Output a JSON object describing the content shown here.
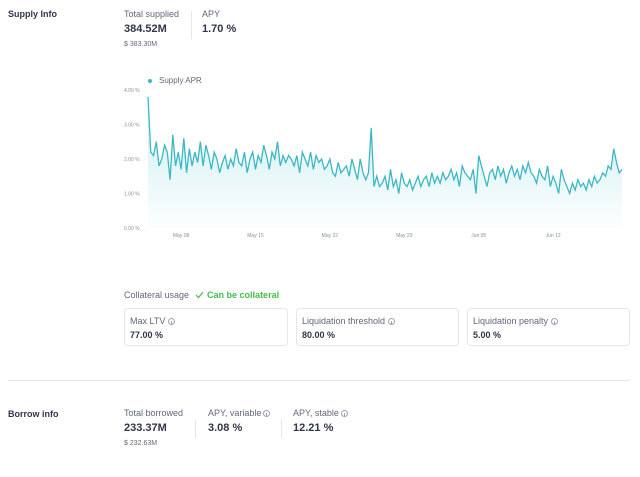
{
  "supply_info": {
    "title": "Supply Info",
    "total_supplied_label": "Total supplied",
    "total_supplied_value": "384.52M",
    "total_supplied_usd": "$ 383.30M",
    "apy_label": "APY",
    "apy_value": "1.70 %"
  },
  "chart_data": {
    "type": "line",
    "legend": "Supply APR",
    "y_ticks": [
      "4.00 %",
      "3.00 %",
      "2.00 %",
      "1.00 %",
      "0.00 %"
    ],
    "ylim": [
      0,
      4
    ],
    "x_ticks": [
      "May 08",
      "May 15",
      "May 22",
      "May 29",
      "Jun 05",
      "Jun 12"
    ],
    "x_tick_index": [
      12,
      39,
      66,
      93,
      120,
      147
    ],
    "values": [
      3.8,
      2.2,
      2.1,
      2.5,
      1.8,
      2.0,
      2.4,
      2.2,
      1.4,
      2.7,
      1.8,
      2.2,
      1.7,
      2.6,
      1.6,
      2.3,
      1.8,
      2.2,
      1.9,
      2.5,
      1.8,
      2.4,
      2.1,
      1.7,
      2.2,
      2.0,
      1.6,
      1.9,
      2.1,
      1.7,
      2.0,
      1.8,
      2.3,
      1.9,
      1.8,
      2.2,
      1.6,
      2.0,
      2.2,
      1.7,
      2.1,
      1.9,
      2.4,
      2.1,
      1.7,
      2.2,
      2.0,
      2.5,
      1.8,
      2.1,
      1.9,
      2.1,
      2.0,
      1.8,
      2.1,
      1.6,
      2.2,
      2.0,
      1.8,
      2.2,
      1.7,
      2.1,
      1.9,
      2.0,
      1.7,
      1.8,
      2.0,
      1.6,
      1.5,
      1.9,
      1.6,
      1.7,
      1.8,
      1.5,
      2.0,
      1.7,
      1.4,
      2.0,
      1.6,
      1.4,
      1.6,
      2.9,
      1.2,
      1.5,
      1.2,
      1.3,
      1.5,
      1.1,
      1.7,
      1.2,
      1.4,
      1.0,
      1.6,
      1.3,
      1.2,
      1.4,
      1.1,
      1.3,
      1.5,
      1.2,
      1.4,
      1.5,
      1.2,
      1.6,
      1.3,
      1.5,
      1.3,
      1.6,
      1.4,
      1.5,
      1.7,
      1.4,
      1.6,
      1.2,
      1.8,
      1.6,
      1.5,
      1.4,
      1.7,
      1.0,
      2.1,
      1.8,
      1.5,
      1.2,
      1.6,
      1.7,
      1.4,
      1.8,
      1.5,
      1.7,
      1.3,
      1.6,
      1.8,
      1.5,
      1.7,
      1.4,
      1.8,
      1.6,
      1.9,
      1.6,
      1.5,
      1.3,
      1.7,
      1.5,
      1.4,
      1.8,
      1.2,
      1.5,
      1.3,
      1.0,
      1.7,
      1.4,
      1.2,
      1.0,
      1.3,
      1.1,
      1.4,
      1.2,
      1.3,
      1.1,
      1.4,
      1.2,
      1.5,
      1.3,
      1.4,
      1.6,
      1.5,
      1.8,
      1.7,
      2.3,
      1.9,
      1.6,
      1.7
    ]
  },
  "collateral": {
    "label": "Collateral usage",
    "status": "Can be collateral",
    "cards": [
      {
        "label": "Max LTV",
        "value": "77.00 %"
      },
      {
        "label": "Liquidation threshold",
        "value": "80.00 %"
      },
      {
        "label": "Liquidation penalty",
        "value": "5.00 %"
      }
    ]
  },
  "borrow_info": {
    "title": "Borrow info",
    "total_borrowed_label": "Total borrowed",
    "total_borrowed_value": "233.37M",
    "total_borrowed_usd": "$ 232.63M",
    "apy_variable_label": "APY, variable",
    "apy_variable_value": "3.08 %",
    "apy_stable_label": "APY, stable",
    "apy_stable_value": "12.21 %"
  },
  "colors": {
    "line": "#3cb7c4",
    "fill_top": "#c5ecef",
    "ok": "#46bc4b"
  }
}
